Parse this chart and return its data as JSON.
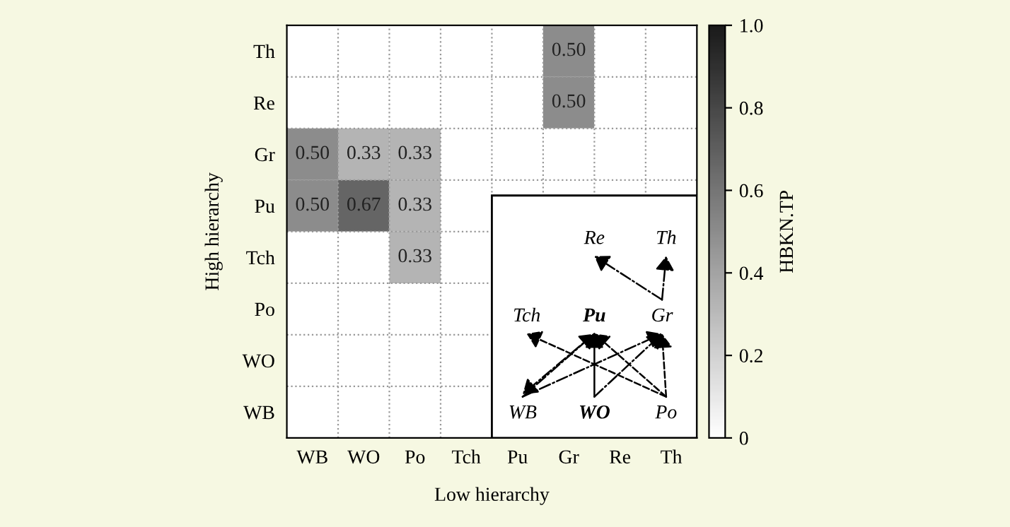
{
  "chart_data": {
    "type": "heatmap",
    "xlabel": "Low hierarchy",
    "ylabel": "High hierarchy",
    "clabel": "HBKN.TP",
    "categories": [
      "WB",
      "WO",
      "Po",
      "Tch",
      "Pu",
      "Gr",
      "Re",
      "Th"
    ],
    "y_categories": [
      "Th",
      "Re",
      "Gr",
      "Pu",
      "Tch",
      "Po",
      "WO",
      "WB"
    ],
    "cells": [
      [
        0,
        0,
        0,
        0,
        0,
        0.5,
        0,
        0
      ],
      [
        0,
        0,
        0,
        0,
        0,
        0.5,
        0,
        0
      ],
      [
        0.5,
        0.33,
        0.33,
        0,
        0,
        0,
        0,
        0
      ],
      [
        0.5,
        0.67,
        0.33,
        0,
        0,
        0,
        0,
        0
      ],
      [
        0,
        0,
        0.33,
        0,
        null,
        null,
        null,
        null
      ],
      [
        0,
        0,
        0,
        0,
        null,
        null,
        null,
        null
      ],
      [
        0,
        0,
        0,
        0,
        null,
        null,
        null,
        null
      ],
      [
        0,
        0,
        0,
        0,
        null,
        null,
        null,
        null
      ]
    ],
    "cell_labels": [
      [
        null,
        null,
        null,
        null,
        null,
        "0.50",
        null,
        null
      ],
      [
        null,
        null,
        null,
        null,
        null,
        "0.50",
        null,
        null
      ],
      [
        "0.50",
        "0.33",
        "0.33",
        null,
        null,
        null,
        null,
        null
      ],
      [
        "0.50",
        "0.67",
        "0.33",
        null,
        null,
        null,
        null,
        null
      ],
      [
        null,
        null,
        "0.33",
        null,
        null,
        null,
        null,
        null
      ],
      [
        null,
        null,
        null,
        null,
        null,
        null,
        null,
        null
      ],
      [
        null,
        null,
        null,
        null,
        null,
        null,
        null,
        null
      ],
      [
        null,
        null,
        null,
        null,
        null,
        null,
        null,
        null
      ]
    ],
    "clim": [
      0,
      1
    ],
    "cticks": [
      0,
      0.2,
      0.4,
      0.6,
      0.8,
      {
        "value": 1,
        "label": "1.0"
      }
    ],
    "grid": true,
    "annotations": [
      "Re",
      "Th",
      "Tch",
      "Pu",
      "Gr",
      "WB",
      "WO",
      "Po"
    ]
  }
}
